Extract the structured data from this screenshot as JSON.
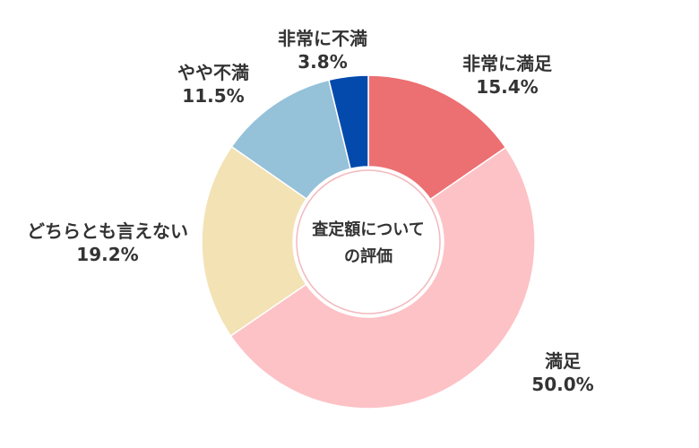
{
  "chart_data": {
    "type": "pie",
    "center_label": [
      "査定額について",
      "の評価"
    ],
    "start_angle_deg": 0,
    "direction": "clockwise",
    "slices": [
      {
        "name": "非常に満足",
        "value": 15.4,
        "label": "15.4%",
        "color": "#ec6f72"
      },
      {
        "name": "満足",
        "value": 50.0,
        "label": "50.0%",
        "color": "#fdc2c6"
      },
      {
        "name": "どちらとも言えない",
        "value": 19.2,
        "label": "19.2%",
        "color": "#f3e2b4"
      },
      {
        "name": "やや不満",
        "value": 11.5,
        "label": "11.5%",
        "color": "#95c1d9"
      },
      {
        "name": "非常に不満",
        "value": 3.8,
        "label": "3.8%",
        "color": "#034aac"
      }
    ]
  }
}
